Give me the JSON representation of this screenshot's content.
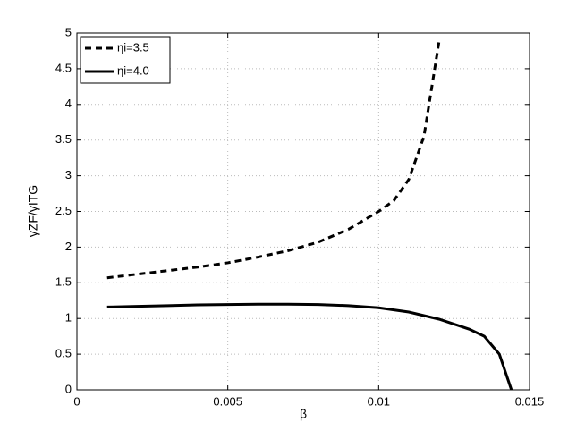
{
  "chart_data": {
    "type": "line",
    "xlabel": "β",
    "ylabel": "γZF/γITG",
    "xlim": [
      0,
      0.015
    ],
    "ylim": [
      0,
      5
    ],
    "xticks": [
      0,
      0.005,
      0.01,
      0.015
    ],
    "yticks": [
      0,
      0.5,
      1,
      1.5,
      2,
      2.5,
      3,
      3.5,
      4,
      4.5,
      5
    ],
    "grid": true,
    "legend": "upper left",
    "series": [
      {
        "name": "ηi=3.5",
        "color": "#000000",
        "dash": true,
        "x": [
          0.001,
          0.002,
          0.003,
          0.004,
          0.005,
          0.006,
          0.007,
          0.008,
          0.009,
          0.01,
          0.0105,
          0.011,
          0.0115,
          0.012
        ],
        "values": [
          1.57,
          1.62,
          1.67,
          1.72,
          1.78,
          1.86,
          1.95,
          2.07,
          2.25,
          2.5,
          2.65,
          2.95,
          3.55,
          4.88
        ]
      },
      {
        "name": "ηi=4.0",
        "color": "#000000",
        "dash": false,
        "x": [
          0.001,
          0.002,
          0.003,
          0.004,
          0.005,
          0.006,
          0.007,
          0.008,
          0.009,
          0.01,
          0.011,
          0.012,
          0.0125,
          0.013,
          0.0135,
          0.014,
          0.0144
        ],
        "values": [
          1.16,
          1.17,
          1.18,
          1.19,
          1.195,
          1.2,
          1.2,
          1.195,
          1.18,
          1.15,
          1.09,
          0.99,
          0.92,
          0.85,
          0.75,
          0.5,
          0
        ]
      }
    ]
  }
}
